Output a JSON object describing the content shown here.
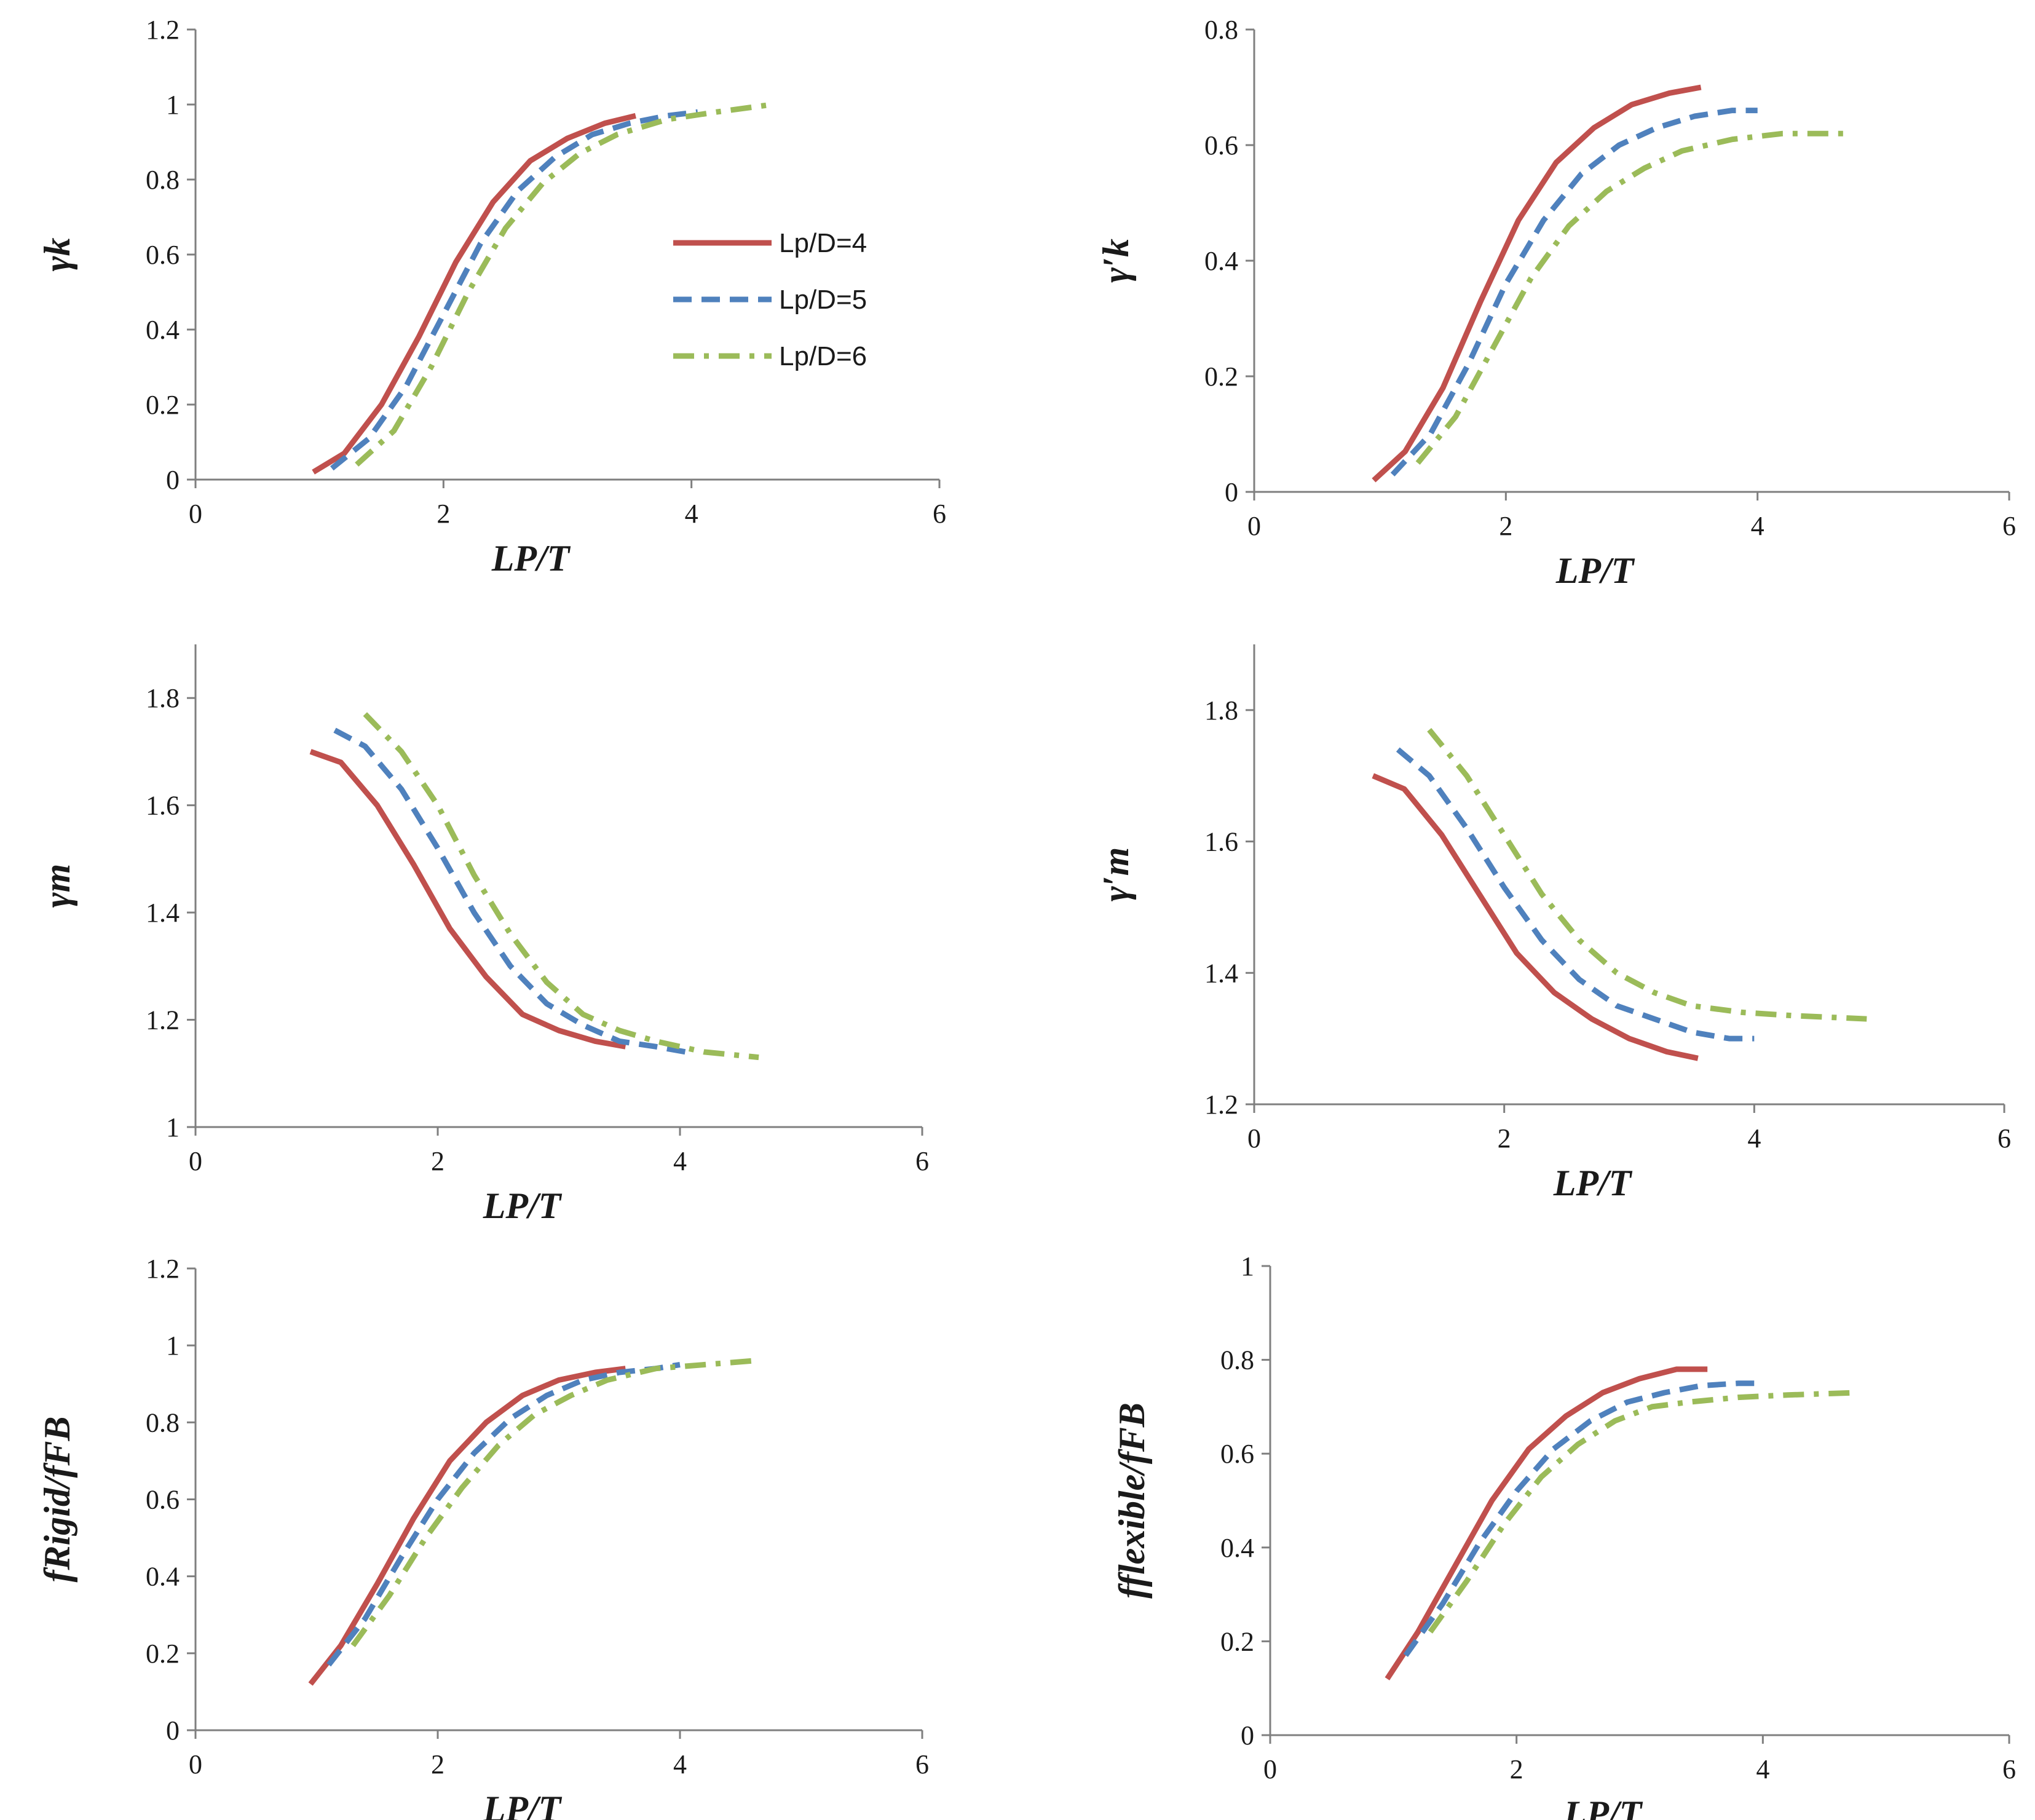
{
  "colors": {
    "Lp/D=4": "#c0504d",
    "Lp/D=5": "#4f81bd",
    "Lp/D=6": "#9bbb59"
  },
  "legend": {
    "entries": [
      {
        "name": "Lp/D=4",
        "label": "Lp/D=4",
        "dash": "solid"
      },
      {
        "name": "Lp/D=5",
        "label": "Lp/D=5",
        "dash": "dash"
      },
      {
        "name": "Lp/D=6",
        "label": "Lp/D=6",
        "dash": "dashdot"
      }
    ]
  },
  "chart_data": [
    {
      "id": "gamma-k",
      "type": "line",
      "title": "",
      "xlabel": "LP/T",
      "ylabel": "γk",
      "xlim": [
        0,
        6
      ],
      "ylim": [
        0,
        1.2
      ],
      "xticks": [
        "0",
        "2",
        "4",
        "6"
      ],
      "yticks": [
        "0",
        "0.2",
        "0.4",
        "0.6",
        "0.8",
        "1",
        "1.2"
      ],
      "series": [
        {
          "name": "Lp/D=4",
          "x": [
            0.95,
            1.2,
            1.5,
            1.8,
            2.1,
            2.4,
            2.7,
            3.0,
            3.3,
            3.55
          ],
          "y": [
            0.02,
            0.07,
            0.2,
            0.38,
            0.58,
            0.74,
            0.85,
            0.91,
            0.95,
            0.97
          ]
        },
        {
          "name": "Lp/D=5",
          "x": [
            1.1,
            1.4,
            1.7,
            2.0,
            2.3,
            2.6,
            2.9,
            3.2,
            3.5,
            3.8,
            4.05
          ],
          "y": [
            0.03,
            0.11,
            0.25,
            0.44,
            0.63,
            0.77,
            0.86,
            0.92,
            0.95,
            0.97,
            0.98
          ]
        },
        {
          "name": "Lp/D=6",
          "x": [
            1.3,
            1.6,
            1.9,
            2.2,
            2.5,
            2.8,
            3.1,
            3.4,
            3.8,
            4.2,
            4.65
          ],
          "y": [
            0.04,
            0.13,
            0.3,
            0.5,
            0.67,
            0.79,
            0.87,
            0.92,
            0.96,
            0.98,
            1.0
          ]
        }
      ]
    },
    {
      "id": "gamma-prime-k",
      "type": "line",
      "title": "",
      "xlabel": "LP/T",
      "ylabel": "γ′k",
      "xlim": [
        0,
        6
      ],
      "ylim": [
        0,
        0.8
      ],
      "xticks": [
        "0",
        "2",
        "4",
        "6"
      ],
      "yticks": [
        "0",
        "0.2",
        "0.4",
        "0.6",
        "0.8"
      ],
      "series": [
        {
          "name": "Lp/D=4",
          "x": [
            0.95,
            1.2,
            1.5,
            1.8,
            2.1,
            2.4,
            2.7,
            3.0,
            3.3,
            3.55
          ],
          "y": [
            0.02,
            0.07,
            0.18,
            0.33,
            0.47,
            0.57,
            0.63,
            0.67,
            0.69,
            0.7
          ]
        },
        {
          "name": "Lp/D=5",
          "x": [
            1.1,
            1.4,
            1.7,
            2.0,
            2.3,
            2.6,
            2.9,
            3.2,
            3.5,
            3.8,
            4.0
          ],
          "y": [
            0.03,
            0.1,
            0.22,
            0.36,
            0.47,
            0.55,
            0.6,
            0.63,
            0.65,
            0.66,
            0.66
          ]
        },
        {
          "name": "Lp/D=6",
          "x": [
            1.3,
            1.6,
            1.9,
            2.2,
            2.5,
            2.8,
            3.1,
            3.4,
            3.8,
            4.2,
            4.7
          ],
          "y": [
            0.05,
            0.13,
            0.25,
            0.37,
            0.46,
            0.52,
            0.56,
            0.59,
            0.61,
            0.62,
            0.62
          ]
        }
      ]
    },
    {
      "id": "gamma-m",
      "type": "line",
      "title": "",
      "xlabel": "LP/T",
      "ylabel": "γm",
      "xlim": [
        0,
        6
      ],
      "ylim": [
        1,
        1.9
      ],
      "xticks": [
        "0",
        "2",
        "4",
        "6"
      ],
      "yticks": [
        "1",
        "1.2",
        "1.4",
        "1.6",
        "1.8"
      ],
      "series": [
        {
          "name": "Lp/D=4",
          "x": [
            0.95,
            1.2,
            1.5,
            1.8,
            2.1,
            2.4,
            2.7,
            3.0,
            3.3,
            3.55
          ],
          "y": [
            1.7,
            1.68,
            1.6,
            1.49,
            1.37,
            1.28,
            1.21,
            1.18,
            1.16,
            1.15
          ]
        },
        {
          "name": "Lp/D=5",
          "x": [
            1.15,
            1.4,
            1.7,
            2.0,
            2.3,
            2.6,
            2.9,
            3.2,
            3.5,
            3.8,
            4.05
          ],
          "y": [
            1.74,
            1.71,
            1.63,
            1.52,
            1.4,
            1.3,
            1.23,
            1.19,
            1.16,
            1.15,
            1.14
          ]
        },
        {
          "name": "Lp/D=6",
          "x": [
            1.4,
            1.7,
            2.0,
            2.3,
            2.6,
            2.9,
            3.2,
            3.5,
            3.8,
            4.2,
            4.65
          ],
          "y": [
            1.77,
            1.7,
            1.6,
            1.47,
            1.36,
            1.27,
            1.21,
            1.18,
            1.16,
            1.14,
            1.13
          ]
        }
      ]
    },
    {
      "id": "gamma-prime-m",
      "type": "line",
      "title": "",
      "xlabel": "LP/T",
      "ylabel": "γ′m",
      "xlim": [
        0,
        6
      ],
      "ylim": [
        1.2,
        1.9
      ],
      "xticks": [
        "0",
        "2",
        "4",
        "6"
      ],
      "yticks": [
        "1.2",
        "1.4",
        "1.6",
        "1.8"
      ],
      "series": [
        {
          "name": "Lp/D=4",
          "x": [
            0.95,
            1.2,
            1.5,
            1.8,
            2.1,
            2.4,
            2.7,
            3.0,
            3.3,
            3.55
          ],
          "y": [
            1.7,
            1.68,
            1.61,
            1.52,
            1.43,
            1.37,
            1.33,
            1.3,
            1.28,
            1.27
          ]
        },
        {
          "name": "Lp/D=5",
          "x": [
            1.15,
            1.4,
            1.7,
            2.0,
            2.3,
            2.6,
            2.9,
            3.2,
            3.5,
            3.8,
            4.0
          ],
          "y": [
            1.74,
            1.7,
            1.62,
            1.53,
            1.45,
            1.39,
            1.35,
            1.33,
            1.31,
            1.3,
            1.3
          ]
        },
        {
          "name": "Lp/D=6",
          "x": [
            1.4,
            1.7,
            2.0,
            2.3,
            2.6,
            2.9,
            3.2,
            3.5,
            3.9,
            4.3,
            4.9
          ],
          "y": [
            1.77,
            1.7,
            1.61,
            1.52,
            1.45,
            1.4,
            1.37,
            1.35,
            1.34,
            1.335,
            1.33
          ]
        }
      ]
    },
    {
      "id": "f-rigid-ratio",
      "type": "line",
      "title": "",
      "xlabel": "LP/T",
      "ylabel": "fRigid/fFB",
      "xlim": [
        0,
        6
      ],
      "ylim": [
        0,
        1.2
      ],
      "xticks": [
        "0",
        "2",
        "4",
        "6"
      ],
      "yticks": [
        "0",
        "0.2",
        "0.4",
        "0.6",
        "0.8",
        "1",
        "1.2"
      ],
      "series": [
        {
          "name": "Lp/D=4",
          "x": [
            0.95,
            1.2,
            1.5,
            1.8,
            2.1,
            2.4,
            2.7,
            3.0,
            3.3,
            3.55
          ],
          "y": [
            0.12,
            0.22,
            0.38,
            0.55,
            0.7,
            0.8,
            0.87,
            0.91,
            0.93,
            0.94
          ]
        },
        {
          "name": "Lp/D=5",
          "x": [
            1.1,
            1.4,
            1.7,
            2.0,
            2.3,
            2.6,
            2.9,
            3.2,
            3.5,
            3.8,
            4.0
          ],
          "y": [
            0.17,
            0.29,
            0.45,
            0.6,
            0.72,
            0.81,
            0.87,
            0.91,
            0.93,
            0.94,
            0.95
          ]
        },
        {
          "name": "Lp/D=6",
          "x": [
            1.3,
            1.6,
            1.9,
            2.2,
            2.5,
            2.8,
            3.1,
            3.4,
            3.8,
            4.2,
            4.6
          ],
          "y": [
            0.22,
            0.35,
            0.5,
            0.63,
            0.74,
            0.82,
            0.87,
            0.91,
            0.94,
            0.95,
            0.96
          ]
        }
      ]
    },
    {
      "id": "f-flexible-ratio",
      "type": "line",
      "title": "",
      "xlabel": "LP/T",
      "ylabel": "fflexible/fFB",
      "xlim": [
        0,
        6
      ],
      "ylim": [
        0,
        1
      ],
      "xticks": [
        "0",
        "2",
        "4",
        "6"
      ],
      "yticks": [
        "0",
        "0.2",
        "0.4",
        "0.6",
        "0.8",
        "1"
      ],
      "series": [
        {
          "name": "Lp/D=4",
          "x": [
            0.95,
            1.2,
            1.5,
            1.8,
            2.1,
            2.4,
            2.7,
            3.0,
            3.3,
            3.55
          ],
          "y": [
            0.12,
            0.22,
            0.36,
            0.5,
            0.61,
            0.68,
            0.73,
            0.76,
            0.78,
            0.78
          ]
        },
        {
          "name": "Lp/D=5",
          "x": [
            1.1,
            1.4,
            1.7,
            2.0,
            2.3,
            2.6,
            2.9,
            3.2,
            3.5,
            3.8,
            4.0
          ],
          "y": [
            0.17,
            0.28,
            0.41,
            0.52,
            0.61,
            0.67,
            0.71,
            0.73,
            0.745,
            0.75,
            0.75
          ]
        },
        {
          "name": "Lp/D=6",
          "x": [
            1.3,
            1.6,
            1.9,
            2.2,
            2.5,
            2.8,
            3.1,
            3.4,
            3.8,
            4.2,
            4.75
          ],
          "y": [
            0.22,
            0.33,
            0.45,
            0.55,
            0.62,
            0.67,
            0.7,
            0.71,
            0.72,
            0.725,
            0.73
          ]
        }
      ]
    }
  ]
}
